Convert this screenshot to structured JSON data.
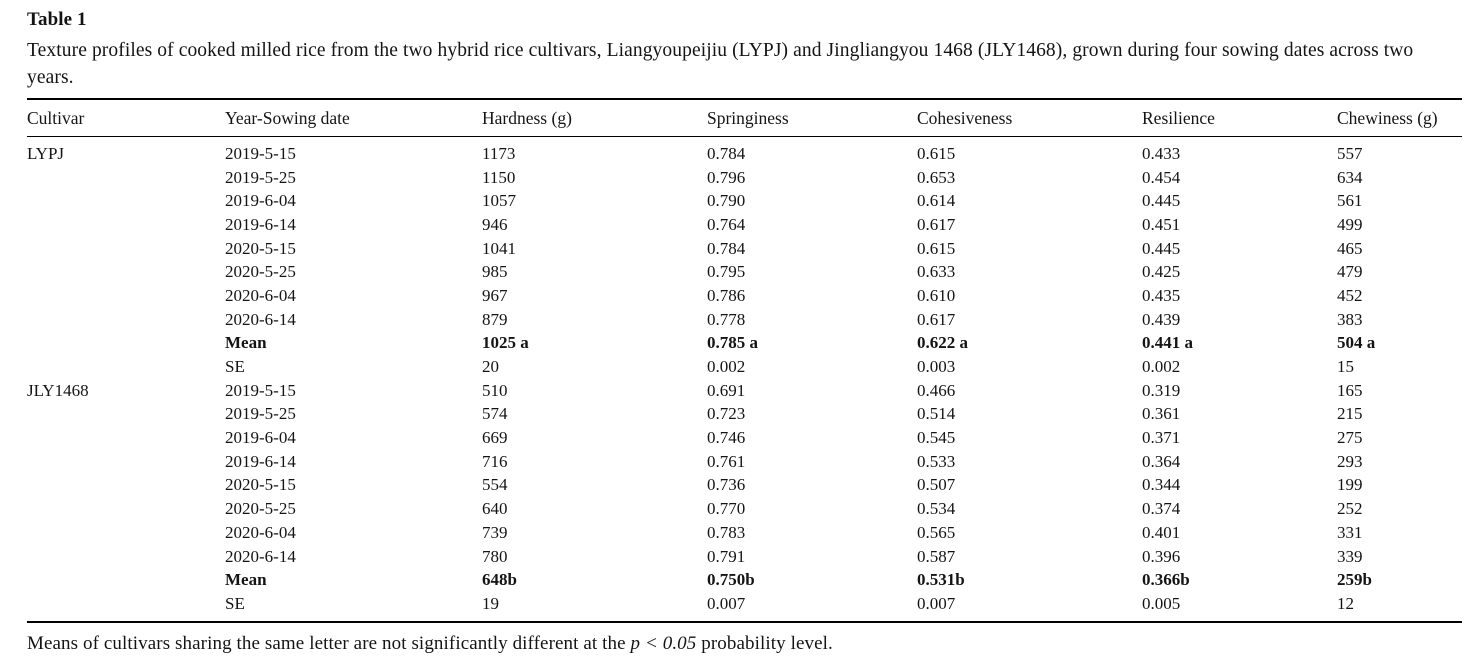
{
  "title": "Table 1",
  "caption": "Texture profiles of cooked milled rice from the two hybrid rice cultivars, Liangyoupeijiu (LYPJ) and Jingliangyou 1468 (JLY1468), grown during four sowing dates across two years.",
  "table": {
    "columns": [
      "Cultivar",
      "Year-Sowing date",
      "Hardness (g)",
      "Springiness",
      "Cohesiveness",
      "Resilience",
      "Chewiness (g)"
    ],
    "rows": [
      {
        "cultivar": "LYPJ",
        "values": [
          "2019-5-15",
          "1173",
          "0.784",
          "0.615",
          "0.433",
          "557"
        ],
        "bold": false
      },
      {
        "cultivar": "",
        "values": [
          "2019-5-25",
          "1150",
          "0.796",
          "0.653",
          "0.454",
          "634"
        ],
        "bold": false
      },
      {
        "cultivar": "",
        "values": [
          "2019-6-04",
          "1057",
          "0.790",
          "0.614",
          "0.445",
          "561"
        ],
        "bold": false
      },
      {
        "cultivar": "",
        "values": [
          "2019-6-14",
          "946",
          "0.764",
          "0.617",
          "0.451",
          "499"
        ],
        "bold": false
      },
      {
        "cultivar": "",
        "values": [
          "2020-5-15",
          "1041",
          "0.784",
          "0.615",
          "0.445",
          "465"
        ],
        "bold": false
      },
      {
        "cultivar": "",
        "values": [
          "2020-5-25",
          "985",
          "0.795",
          "0.633",
          "0.425",
          "479"
        ],
        "bold": false
      },
      {
        "cultivar": "",
        "values": [
          "2020-6-04",
          "967",
          "0.786",
          "0.610",
          "0.435",
          "452"
        ],
        "bold": false
      },
      {
        "cultivar": "",
        "values": [
          "2020-6-14",
          "879",
          "0.778",
          "0.617",
          "0.439",
          "383"
        ],
        "bold": false
      },
      {
        "cultivar": "",
        "values": [
          "Mean",
          "1025 a",
          "0.785 a",
          "0.622 a",
          "0.441 a",
          "504 a"
        ],
        "bold": true
      },
      {
        "cultivar": "",
        "values": [
          "SE",
          "20",
          "0.002",
          "0.003",
          "0.002",
          "15"
        ],
        "bold": false
      },
      {
        "cultivar": "JLY1468",
        "values": [
          "2019-5-15",
          "510",
          "0.691",
          "0.466",
          "0.319",
          "165"
        ],
        "bold": false
      },
      {
        "cultivar": "",
        "values": [
          "2019-5-25",
          "574",
          "0.723",
          "0.514",
          "0.361",
          "215"
        ],
        "bold": false
      },
      {
        "cultivar": "",
        "values": [
          "2019-6-04",
          "669",
          "0.746",
          "0.545",
          "0.371",
          "275"
        ],
        "bold": false
      },
      {
        "cultivar": "",
        "values": [
          "2019-6-14",
          "716",
          "0.761",
          "0.533",
          "0.364",
          "293"
        ],
        "bold": false
      },
      {
        "cultivar": "",
        "values": [
          "2020-5-15",
          "554",
          "0.736",
          "0.507",
          "0.344",
          "199"
        ],
        "bold": false
      },
      {
        "cultivar": "",
        "values": [
          "2020-5-25",
          "640",
          "0.770",
          "0.534",
          "0.374",
          "252"
        ],
        "bold": false
      },
      {
        "cultivar": "",
        "values": [
          "2020-6-04",
          "739",
          "0.783",
          "0.565",
          "0.401",
          "331"
        ],
        "bold": false
      },
      {
        "cultivar": "",
        "values": [
          "2020-6-14",
          "780",
          "0.791",
          "0.587",
          "0.396",
          "339"
        ],
        "bold": false
      },
      {
        "cultivar": "",
        "values": [
          "Mean",
          "648b",
          "0.750b",
          "0.531b",
          "0.366b",
          "259b"
        ],
        "bold": true
      },
      {
        "cultivar": "",
        "values": [
          "SE",
          "19",
          "0.007",
          "0.007",
          "0.005",
          "12"
        ],
        "bold": false
      }
    ]
  },
  "footnote": {
    "prefix": "Means of cultivars sharing the same letter are not significantly different at the ",
    "italic": "p < 0.05",
    "suffix": " probability level."
  }
}
